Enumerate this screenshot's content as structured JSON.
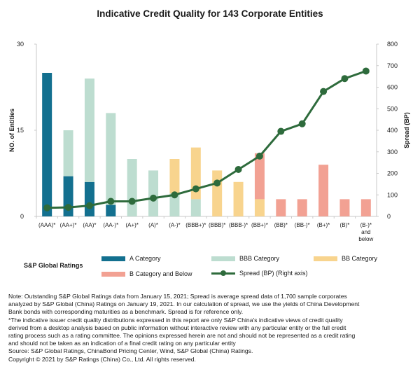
{
  "chart_data": {
    "type": "bar+line",
    "title": "Indicative  Credit Quality for 143 Corporate Entities",
    "ylabel_left": "NO. of Entities",
    "ylabel_right": "Spread (BP)",
    "ylim_left": [
      0,
      30
    ],
    "yticks_left": [
      "0",
      "15",
      "30"
    ],
    "ylim_right": [
      0,
      800
    ],
    "yticks_right": [
      "0",
      "100",
      "200",
      "300",
      "400",
      "500",
      "600",
      "700",
      "800"
    ],
    "categories": [
      "(AAA)*",
      "(AA+)*",
      "(AA)*",
      "(AA-)*",
      "(A+)*",
      "(A)*",
      "(A-)*",
      "(BBB+)*",
      "(BBB)*",
      "(BBB-)*",
      "(BB+)*",
      "(BB)*",
      "(BB-)*",
      "(B+)*",
      "(B)*",
      "(B-)* and below"
    ],
    "category_display": [
      [
        "(AAA)*"
      ],
      [
        "(AA+)*"
      ],
      [
        "(AA)*"
      ],
      [
        "(AA-)*"
      ],
      [
        "(A+)*"
      ],
      [
        "(A)*"
      ],
      [
        "(A-)*"
      ],
      [
        "(BBB+)*"
      ],
      [
        "(BBB)*"
      ],
      [
        "(BBB-)*"
      ],
      [
        "(BB+)*"
      ],
      [
        "(BB)*"
      ],
      [
        "(BB-)*"
      ],
      [
        "(B+)*"
      ],
      [
        "(B)*"
      ],
      [
        "(B-)*",
        "and",
        "below"
      ]
    ],
    "series": [
      {
        "name": "A Category",
        "type": "bar",
        "axis": "left",
        "color": "#13708f",
        "values": [
          25,
          7,
          6,
          2,
          0,
          0,
          0,
          0,
          0,
          0,
          0,
          0,
          0,
          0,
          0,
          0
        ]
      },
      {
        "name": "BBB Category",
        "type": "bar",
        "axis": "left",
        "color": "#bdddd0",
        "values": [
          0,
          8,
          18,
          16,
          10,
          8,
          4,
          3,
          0,
          0,
          0,
          0,
          0,
          0,
          0,
          0
        ]
      },
      {
        "name": "BB Category",
        "type": "bar",
        "axis": "left",
        "color": "#f8d48e",
        "values": [
          0,
          0,
          0,
          0,
          0,
          0,
          6,
          9,
          8,
          6,
          3,
          0,
          0,
          0,
          0,
          0
        ]
      },
      {
        "name": "B Category and Below",
        "type": "bar",
        "axis": "left",
        "color": "#f2a193",
        "values": [
          0,
          0,
          0,
          0,
          0,
          0,
          0,
          0,
          0,
          0,
          8,
          3,
          3,
          9,
          3,
          3
        ]
      },
      {
        "name": "Spread (BP) (Right axis)",
        "type": "line",
        "axis": "right",
        "color": "#2e6b3c",
        "values": [
          40,
          42,
          50,
          70,
          70,
          85,
          100,
          128,
          155,
          218,
          280,
          395,
          430,
          580,
          640,
          675
        ]
      }
    ],
    "legend": {
      "title": "S&P Global Ratings",
      "entries": [
        "A Category",
        "BBB Category",
        "BB Category",
        "B Category and Below",
        "Spread (BP) (Right axis)"
      ],
      "placement": "bottom"
    }
  },
  "notes": [
    "Note: Outstanding S&P Global Ratings data from January 15, 2021; Spread is average  spread data of 1,700 sample corporates",
    "analyzed  by S&P Global (China) Ratings on January 19, 2021. In our calculation of spread,  we use the yields of China Development",
    "Bank bonds with corresponding maturities  as a benchmark.  Spread  is for reference  only.",
    "*The indicative issuer credit quality distributions expressed  in this report are only S&P China's indicative views  of credit quality",
    "derived  from a desktop analysis based on public information without interactive  review  with any particular entity or the full credit",
    "rating process such as a rating committee.  The opinions expressed herein  are not and should not be represented  as a credit rating",
    "and should not be taken as an indication of a final credit rating on any particular entity",
    "Source: S&P Global Ratings, ChinaBond Pricing Center, Wind, S&P Global (China) Ratings.",
    "Copyright © 2021 by S&P Ratings (China) Co., Ltd. All rights reserved."
  ]
}
